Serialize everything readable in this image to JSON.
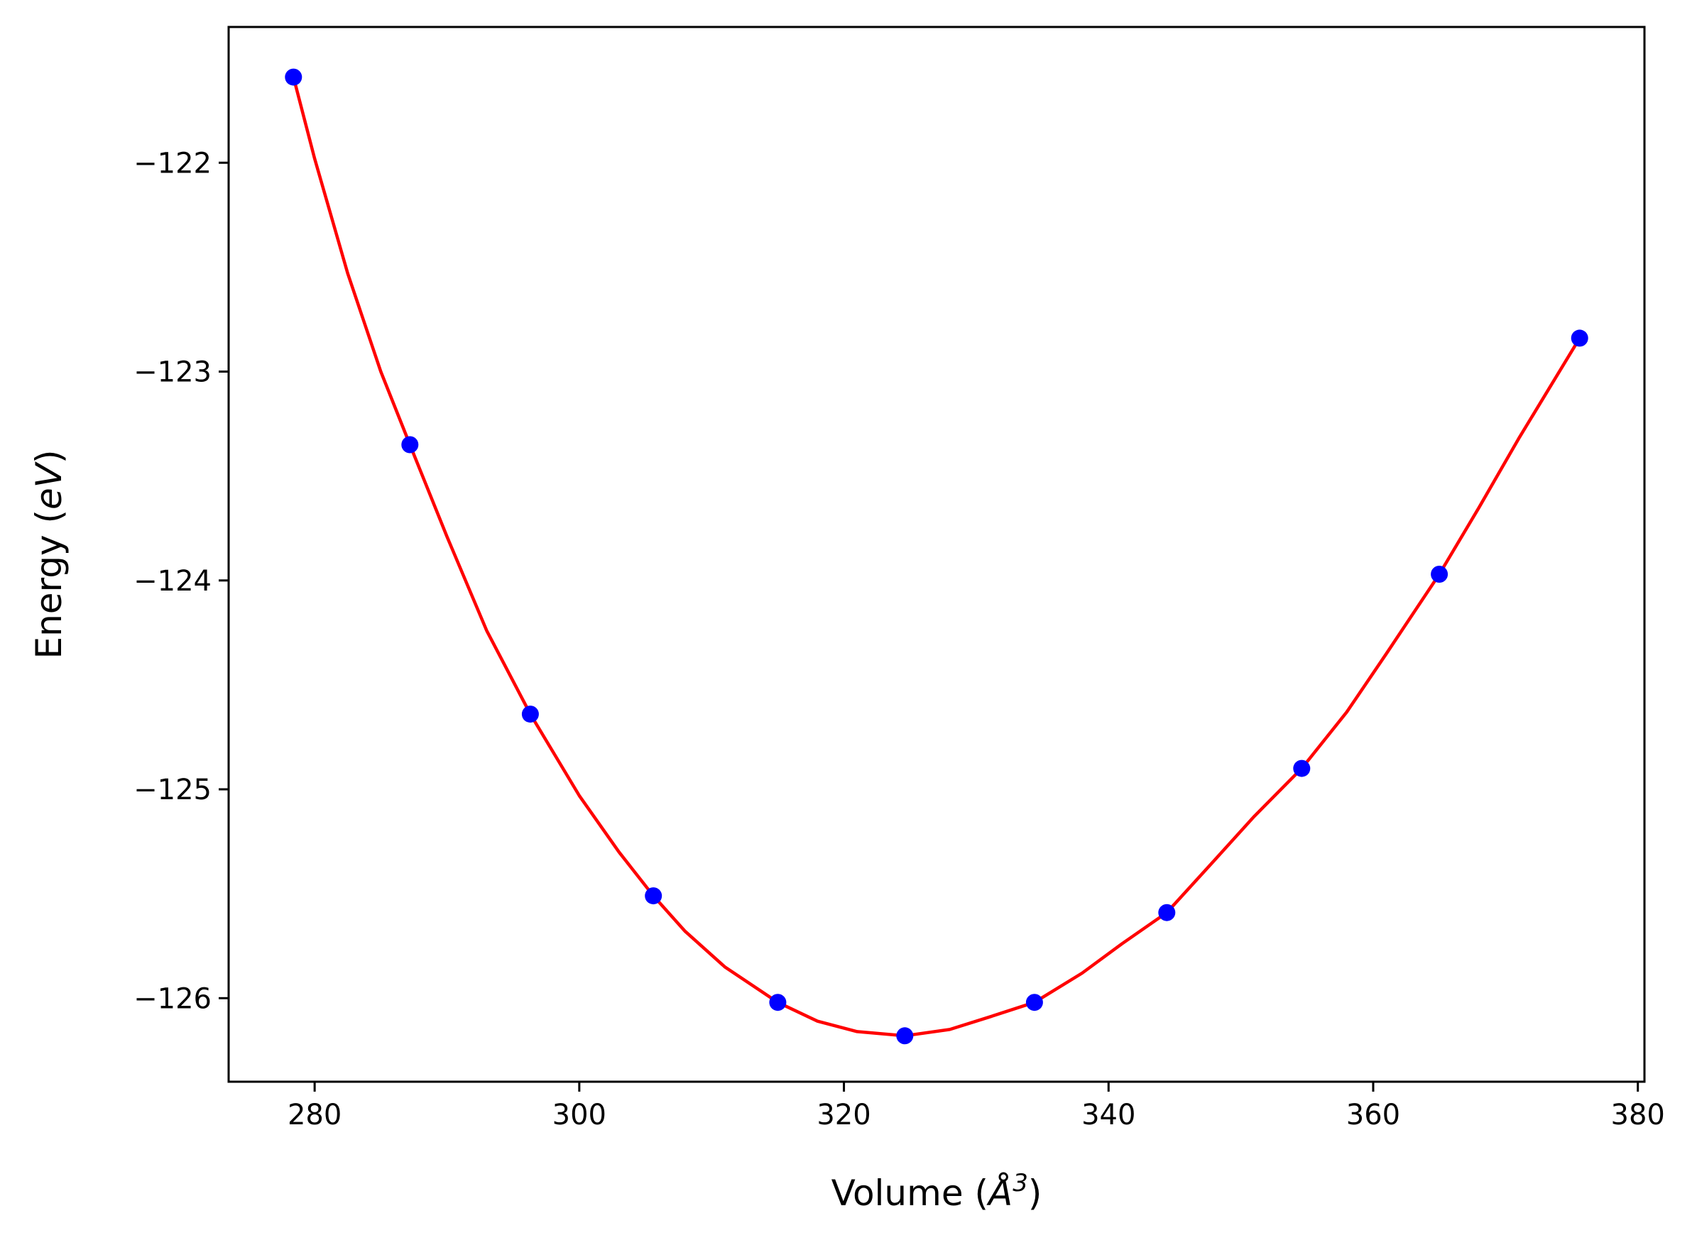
{
  "chart_data": {
    "type": "scatter",
    "xlabel": "Volume (",
    "xlabel_unit": "Å",
    "xlabel_exp": "3",
    "xlabel_close": ")",
    "ylabel": "Energy (",
    "ylabel_unit": "eV",
    "ylabel_close": ")",
    "xlim": [
      273.5,
      380.5
    ],
    "ylim": [
      -126.4,
      -121.35
    ],
    "xticks": [
      280,
      300,
      320,
      340,
      360,
      380
    ],
    "yticks": [
      -122,
      -123,
      -124,
      -125,
      -126
    ],
    "xtick_labels": [
      "280",
      "300",
      "320",
      "340",
      "360",
      "380"
    ],
    "ytick_labels": [
      "−122",
      "−123",
      "−124",
      "−125",
      "−126"
    ],
    "grid": false,
    "series": [
      {
        "kind": "points",
        "color": "#0000ff",
        "x": [
          278.4,
          287.2,
          296.3,
          305.6,
          315.0,
          324.6,
          334.4,
          344.4,
          354.6,
          365.0,
          375.6
        ],
        "y": [
          -121.59,
          -123.35,
          -124.64,
          -125.51,
          -126.02,
          -126.18,
          -126.02,
          -125.59,
          -124.9,
          -123.97,
          -122.84
        ]
      },
      {
        "kind": "fit-line",
        "color": "#ff0000",
        "x": [
          278.4,
          280,
          282.5,
          285,
          287.2,
          290,
          293,
          296.3,
          300,
          303,
          305.6,
          308,
          311,
          315.0,
          318,
          321,
          324.6,
          328,
          331,
          334.4,
          338,
          341,
          344.4,
          348,
          351,
          354.6,
          358,
          361,
          365.0,
          368,
          371,
          375.6
        ],
        "y": [
          -121.59,
          -121.98,
          -122.53,
          -123.0,
          -123.35,
          -123.79,
          -124.24,
          -124.64,
          -125.03,
          -125.3,
          -125.51,
          -125.68,
          -125.85,
          -126.02,
          -126.11,
          -126.16,
          -126.18,
          -126.15,
          -126.09,
          -126.02,
          -125.88,
          -125.74,
          -125.59,
          -125.34,
          -125.13,
          -124.9,
          -124.63,
          -124.35,
          -123.97,
          -123.65,
          -123.32,
          -122.84
        ]
      }
    ]
  }
}
